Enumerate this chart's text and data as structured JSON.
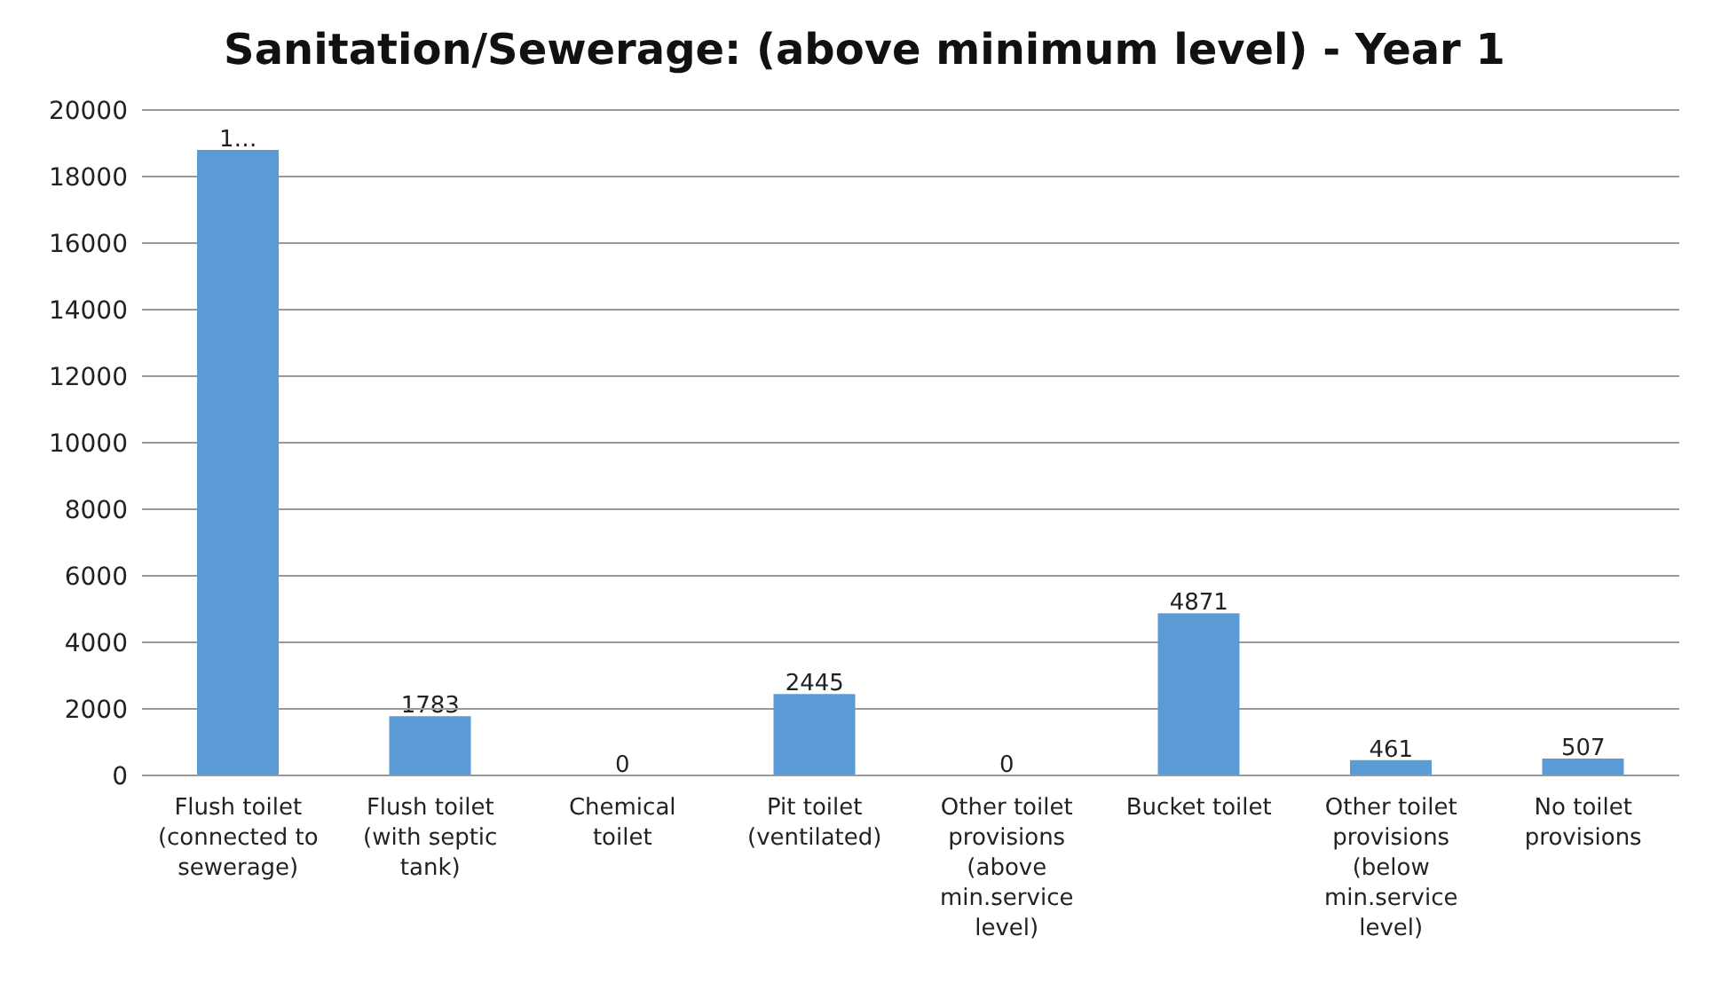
{
  "chart_data": {
    "type": "bar",
    "title": "Sanitation/Sewerage: (above minimum level) - Year 1",
    "categories": [
      "Flush toilet (connected to sewerage)",
      "Flush toilet (with septic tank)",
      "Chemical toilet",
      "Pit toilet (ventilated)",
      "Other toilet provisions (above min.service level)",
      "Bucket toilet",
      "Other toilet provisions (below min.service level)",
      "No toilet provisions"
    ],
    "values": [
      18800,
      1783,
      0,
      2445,
      0,
      4871,
      461,
      507
    ],
    "value_labels": [
      "1…",
      "1783",
      "0",
      "2445",
      "0",
      "4871",
      "461",
      "507"
    ],
    "color": "#5b9bd5",
    "ylim": [
      0,
      20000
    ],
    "yticks": [
      0,
      2000,
      4000,
      6000,
      8000,
      10000,
      12000,
      14000,
      16000,
      18000,
      20000
    ],
    "grid": "y",
    "legend": false
  }
}
